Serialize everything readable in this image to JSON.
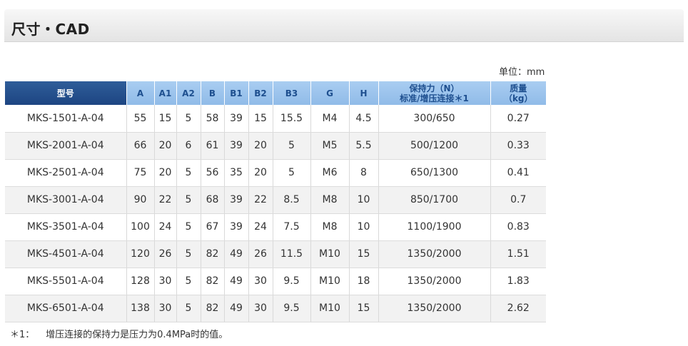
{
  "section": {
    "title": "尺寸・CAD"
  },
  "unit_label": "单位：mm",
  "table": {
    "headers": {
      "model": "型号",
      "a": "A",
      "a1": "A1",
      "a2": "A2",
      "b": "B",
      "b1": "B1",
      "b2": "B2",
      "b3": "B3",
      "g": "G",
      "h": "H",
      "force_line1": "保持力（N）",
      "force_line2": "标准/增压连接＊1",
      "mass_line1": "质量",
      "mass_line2": "（kg）"
    },
    "rows": [
      {
        "model": "MKS-1501-A-04",
        "a": "55",
        "a1": "15",
        "a2": "5",
        "b": "58",
        "b1": "39",
        "b2": "15",
        "b3": "15.5",
        "g": "M4",
        "h": "4.5",
        "force": "300/650",
        "mass": "0.27"
      },
      {
        "model": "MKS-2001-A-04",
        "a": "66",
        "a1": "20",
        "a2": "6",
        "b": "61",
        "b1": "39",
        "b2": "20",
        "b3": "5",
        "g": "M5",
        "h": "5.5",
        "force": "500/1200",
        "mass": "0.33"
      },
      {
        "model": "MKS-2501-A-04",
        "a": "75",
        "a1": "20",
        "a2": "5",
        "b": "56",
        "b1": "35",
        "b2": "20",
        "b3": "5",
        "g": "M6",
        "h": "8",
        "force": "650/1300",
        "mass": "0.41"
      },
      {
        "model": "MKS-3001-A-04",
        "a": "90",
        "a1": "22",
        "a2": "5",
        "b": "68",
        "b1": "39",
        "b2": "22",
        "b3": "8.5",
        "g": "M8",
        "h": "10",
        "force": "850/1700",
        "mass": "0.7"
      },
      {
        "model": "MKS-3501-A-04",
        "a": "100",
        "a1": "24",
        "a2": "5",
        "b": "67",
        "b1": "39",
        "b2": "24",
        "b3": "7.5",
        "g": "M8",
        "h": "10",
        "force": "1100/1900",
        "mass": "0.83"
      },
      {
        "model": "MKS-4501-A-04",
        "a": "120",
        "a1": "26",
        "a2": "5",
        "b": "82",
        "b1": "49",
        "b2": "26",
        "b3": "11.5",
        "g": "M10",
        "h": "15",
        "force": "1350/2000",
        "mass": "1.51"
      },
      {
        "model": "MKS-5501-A-04",
        "a": "128",
        "a1": "30",
        "a2": "5",
        "b": "82",
        "b1": "49",
        "b2": "30",
        "b3": "9.5",
        "g": "M10",
        "h": "18",
        "force": "1350/2000",
        "mass": "1.83"
      },
      {
        "model": "MKS-6501-A-04",
        "a": "138",
        "a1": "30",
        "a2": "5",
        "b": "82",
        "b1": "49",
        "b2": "30",
        "b3": "9.5",
        "g": "M10",
        "h": "15",
        "force": "1350/2000",
        "mass": "2.62"
      }
    ]
  },
  "footnote": {
    "mark": "＊1：",
    "text": "增压连接的保持力是压力为0.4MPa时的值。"
  },
  "colors": {
    "header_model_bg": "#1d4582",
    "header_bg": "#9cc4ec",
    "header_text": "#1e4f8f",
    "row_alt_bg": "#f2f2f2"
  }
}
